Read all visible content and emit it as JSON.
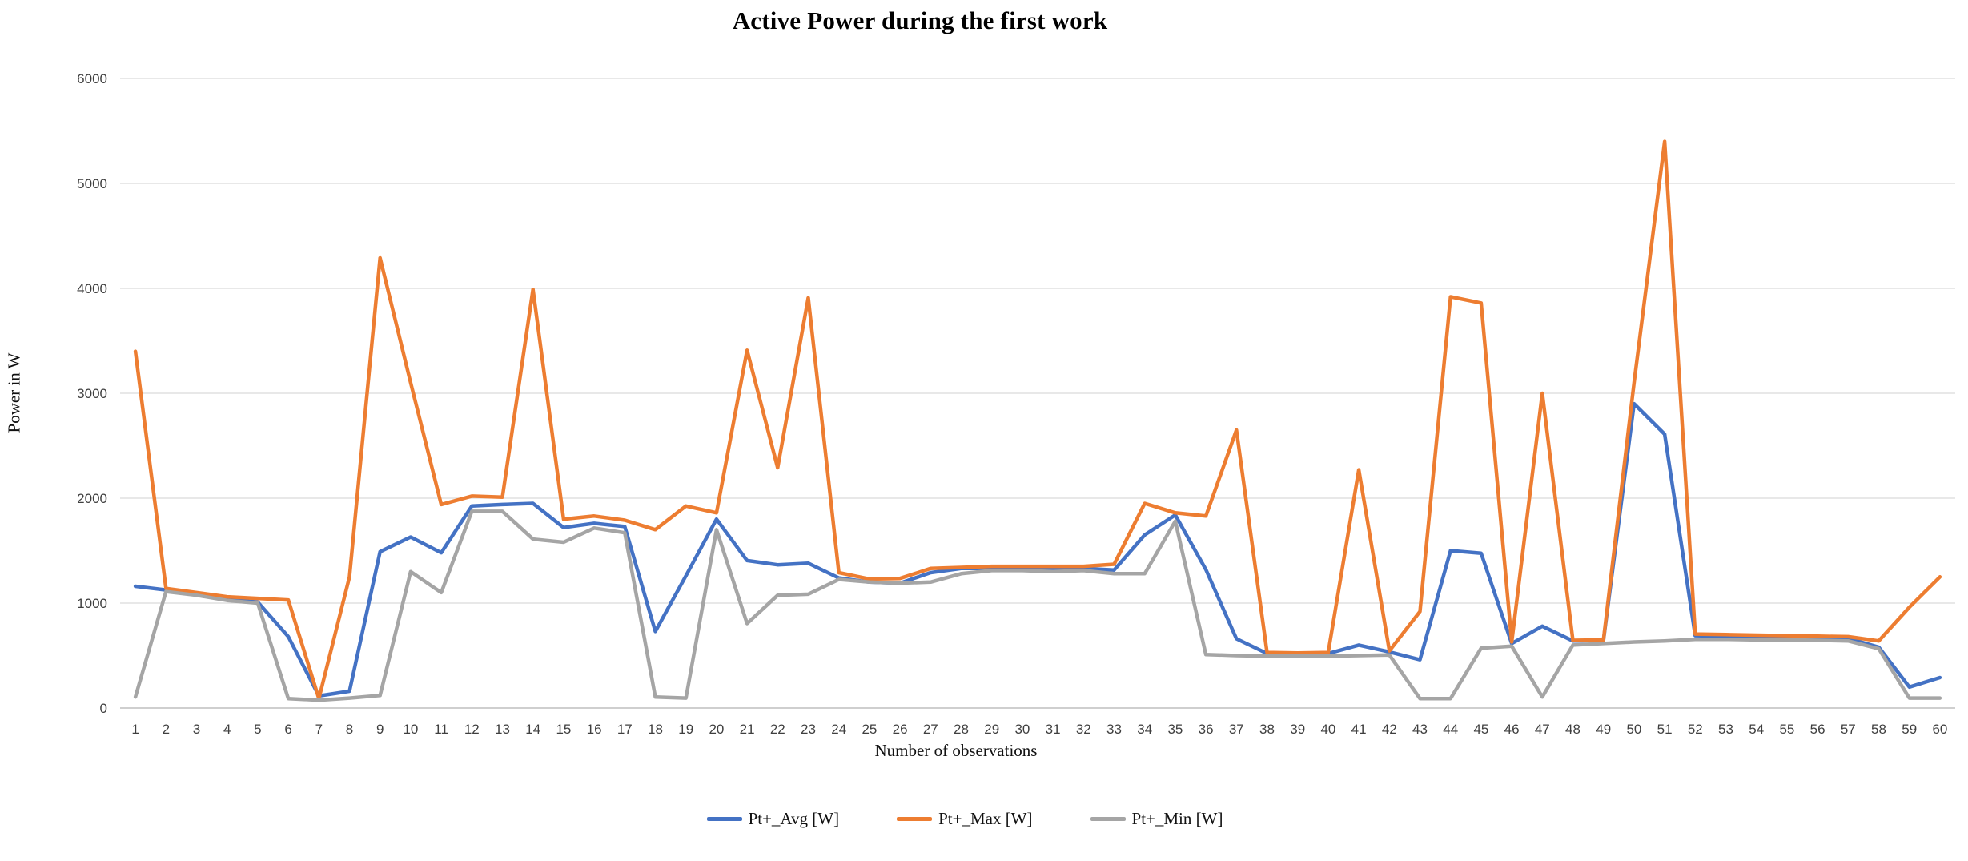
{
  "title": "Active Power during the first work",
  "chart_data": {
    "type": "line",
    "title": "Active Power during the first work",
    "xlabel": "Number of observations",
    "ylabel": "Power in W",
    "ylim": [
      0,
      6000
    ],
    "y_ticks": [
      0,
      1000,
      2000,
      3000,
      4000,
      5000,
      6000
    ],
    "grid": true,
    "legend_position": "bottom",
    "x": [
      1,
      2,
      3,
      4,
      5,
      6,
      7,
      8,
      9,
      10,
      11,
      12,
      13,
      14,
      15,
      16,
      17,
      18,
      19,
      20,
      21,
      22,
      23,
      24,
      25,
      26,
      27,
      28,
      29,
      30,
      31,
      32,
      33,
      34,
      35,
      36,
      37,
      38,
      39,
      40,
      41,
      42,
      43,
      44,
      45,
      46,
      47,
      48,
      49,
      50,
      51,
      52,
      53,
      54,
      55,
      56,
      57,
      58,
      59,
      60
    ],
    "series": [
      {
        "name": "Pt+_Avg [W]",
        "color": "#4472C4",
        "values": [
          1160,
          1125,
          1085,
          1035,
          1010,
          680,
          115,
          160,
          1490,
          1630,
          1480,
          1925,
          1940,
          1950,
          1720,
          1760,
          1730,
          730,
          1260,
          1800,
          1405,
          1365,
          1380,
          1240,
          1200,
          1190,
          1290,
          1330,
          1330,
          1330,
          1320,
          1330,
          1315,
          1650,
          1840,
          1320,
          660,
          520,
          510,
          520,
          600,
          535,
          460,
          1500,
          1475,
          615,
          780,
          640,
          645,
          2900,
          2610,
          690,
          685,
          680,
          675,
          670,
          665,
          580,
          200,
          290
        ]
      },
      {
        "name": "Pt+_Max [W]",
        "color": "#ED7D31",
        "values": [
          3400,
          1140,
          1100,
          1060,
          1045,
          1030,
          90,
          1250,
          4290,
          3100,
          1940,
          2020,
          2010,
          3990,
          1800,
          1830,
          1790,
          1700,
          1925,
          1860,
          3410,
          2290,
          3910,
          1290,
          1230,
          1235,
          1330,
          1340,
          1350,
          1350,
          1350,
          1350,
          1370,
          1950,
          1860,
          1830,
          2650,
          530,
          525,
          530,
          2270,
          545,
          920,
          3920,
          3860,
          630,
          3000,
          645,
          650,
          3100,
          5400,
          705,
          700,
          695,
          690,
          685,
          680,
          640,
          960,
          1250
        ]
      },
      {
        "name": "Pt+_Min [W]",
        "color": "#A5A5A5",
        "values": [
          105,
          1110,
          1075,
          1025,
          1000,
          90,
          75,
          95,
          120,
          1300,
          1100,
          1875,
          1875,
          1610,
          1580,
          1715,
          1670,
          105,
          95,
          1700,
          805,
          1075,
          1085,
          1225,
          1200,
          1190,
          1200,
          1280,
          1310,
          1310,
          1300,
          1310,
          1280,
          1280,
          1780,
          510,
          500,
          495,
          495,
          495,
          500,
          505,
          90,
          90,
          570,
          590,
          105,
          600,
          615,
          630,
          640,
          655,
          655,
          650,
          650,
          645,
          640,
          565,
          95,
          95
        ]
      }
    ],
    "gridline_color": "#D9D9D9",
    "axis_line_color": "#BFBFBF"
  }
}
